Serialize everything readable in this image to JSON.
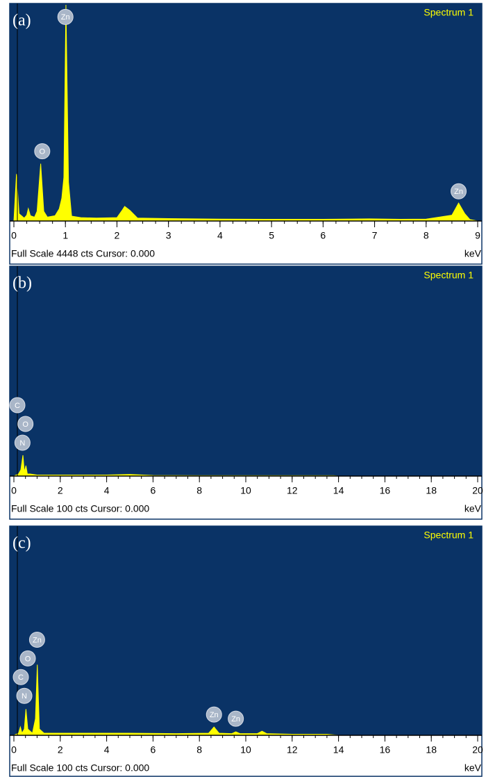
{
  "chart_data": [
    {
      "type": "area",
      "panel_label": "(a)",
      "legend": "Spectrum 1",
      "footer": "Full Scale 4448 cts Cursor: 0.000",
      "x_unit": "keV",
      "color": "#ffff00",
      "x": [
        0,
        0.05,
        0.1,
        0.2,
        0.25,
        0.28,
        0.32,
        0.4,
        0.45,
        0.52,
        0.58,
        0.65,
        0.8,
        0.88,
        0.93,
        0.97,
        1.01,
        1.06,
        1.12,
        1.3,
        1.6,
        2.0,
        2.1,
        2.15,
        2.25,
        2.4,
        3,
        4,
        5,
        6,
        6.9,
        7.5,
        8.0,
        8.5,
        8.63,
        8.75,
        8.85,
        9
      ],
      "values": [
        0,
        966,
        150,
        60,
        120,
        256,
        110,
        80,
        200,
        1180,
        200,
        80,
        110,
        250,
        470,
        900,
        4448,
        800,
        100,
        70,
        60,
        70,
        220,
        300,
        220,
        60,
        50,
        40,
        35,
        35,
        45,
        35,
        40,
        120,
        370,
        150,
        30,
        0
      ],
      "xlim": [
        0,
        9
      ],
      "xticks": [
        0,
        1,
        2,
        3,
        4,
        5,
        6,
        7,
        8,
        9
      ],
      "ylim": [
        0,
        4448
      ],
      "peak_labels": [
        {
          "label": "Zn",
          "x": 1.0,
          "y": 4200
        },
        {
          "label": "O",
          "x": 0.55,
          "y": 1435
        },
        {
          "label": "Zn",
          "x": 8.63,
          "y": 611
        }
      ]
    },
    {
      "type": "area",
      "panel_label": "(b)",
      "legend": "Spectrum 1",
      "footer": "Full Scale 100 cts Cursor: 0.000",
      "x_unit": "keV",
      "color": "#ffff00",
      "x": [
        0,
        0.1,
        0.2,
        0.3,
        0.39,
        0.45,
        0.52,
        0.58,
        0.7,
        1,
        2,
        3,
        4,
        5,
        6,
        8,
        10,
        12,
        13.8,
        14,
        16,
        18,
        20
      ],
      "values": [
        0,
        0.5,
        1,
        3,
        10,
        2,
        5,
        1,
        1,
        0.5,
        0.5,
        0.5,
        0.5,
        0.8,
        0.3,
        0.2,
        0.2,
        0.2,
        0.2,
        0,
        0,
        0,
        0
      ],
      "xlim": [
        0,
        20
      ],
      "xticks": [
        0,
        2,
        4,
        6,
        8,
        10,
        12,
        14,
        16,
        18,
        20
      ],
      "ylim": [
        0,
        100
      ],
      "peak_labels": [
        {
          "label": "C",
          "x": 0.15,
          "y": 34
        },
        {
          "label": "O",
          "x": 0.5,
          "y": 25
        },
        {
          "label": "N",
          "x": 0.37,
          "y": 16
        }
      ]
    },
    {
      "type": "area",
      "panel_label": "(c)",
      "legend": "Spectrum 1",
      "footer": "Full Scale 100 cts Cursor: 0.000",
      "x_unit": "keV",
      "color": "#ffff00",
      "x": [
        0,
        0.2,
        0.28,
        0.35,
        0.45,
        0.52,
        0.6,
        0.8,
        0.93,
        1.01,
        1.1,
        1.3,
        2,
        3.5,
        5,
        7,
        8.4,
        8.63,
        8.85,
        9.4,
        9.57,
        9.75,
        10.5,
        10.7,
        10.9,
        12,
        13.5,
        14,
        16,
        18,
        20
      ],
      "values": [
        0,
        1,
        4,
        1,
        3,
        12.6,
        3,
        1,
        8,
        34,
        3,
        1,
        1,
        1,
        1,
        0.8,
        1,
        4,
        1,
        0.8,
        1.7,
        0.8,
        0.8,
        2,
        0.8,
        0.5,
        0.5,
        0,
        0,
        0,
        0
      ],
      "xlim": [
        0,
        20
      ],
      "xticks": [
        0,
        2,
        4,
        6,
        8,
        10,
        12,
        14,
        16,
        18,
        20
      ],
      "ylim": [
        0,
        100
      ],
      "peak_labels": [
        {
          "label": "Zn",
          "x": 1.0,
          "y": 46
        },
        {
          "label": "O",
          "x": 0.6,
          "y": 37
        },
        {
          "label": "C",
          "x": 0.3,
          "y": 28
        },
        {
          "label": "N",
          "x": 0.45,
          "y": 19
        },
        {
          "label": "Zn",
          "x": 8.63,
          "y": 10
        },
        {
          "label": "Zn",
          "x": 9.57,
          "y": 8
        }
      ]
    }
  ]
}
